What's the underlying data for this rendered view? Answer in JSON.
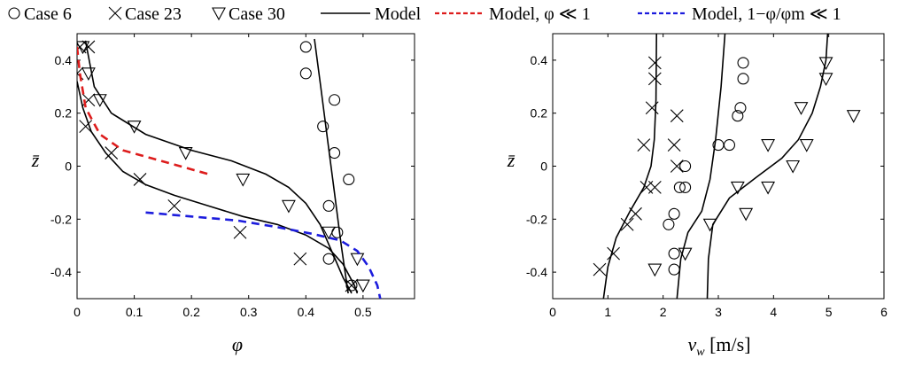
{
  "legend": [
    {
      "marker": "circle",
      "label": "Case 6"
    },
    {
      "marker": "cross",
      "label": "Case 23"
    },
    {
      "marker": "triangle",
      "label": "Case 30"
    },
    {
      "marker": "solid-line",
      "label": "Model",
      "color": "#000000"
    },
    {
      "marker": "dashed-line",
      "label": "Model, φ ≪ 1",
      "color": "#dd1c1c"
    },
    {
      "marker": "dashed-line",
      "label": "Model, 1−φ/φm ≪ 1",
      "color": "#1c1cdd"
    }
  ],
  "chart_data": [
    {
      "type": "scatter",
      "xlabel": "φ",
      "ylabel": "z̄",
      "xlim": [
        0,
        0.59
      ],
      "ylim": [
        -0.5,
        0.5
      ],
      "xticks": [
        "0",
        "0.1",
        "0.2",
        "0.3",
        "0.4",
        "0.5"
      ],
      "yticks": [
        "-0.4",
        "-0.2",
        "0",
        "0.2",
        "0.4"
      ],
      "grid": false,
      "series": [
        {
          "name": "Case 6",
          "marker": "circle",
          "points": [
            [
              0.4,
              0.45
            ],
            [
              0.4,
              0.35
            ],
            [
              0.45,
              0.25
            ],
            [
              0.43,
              0.15
            ],
            [
              0.45,
              0.05
            ],
            [
              0.475,
              -0.05
            ],
            [
              0.44,
              -0.15
            ],
            [
              0.455,
              -0.25
            ],
            [
              0.44,
              -0.35
            ],
            [
              0.48,
              -0.45
            ]
          ]
        },
        {
          "name": "Case 23",
          "marker": "cross",
          "points": [
            [
              0.005,
              0.45
            ],
            [
              0.02,
              0.45
            ],
            [
              0.0,
              0.35
            ],
            [
              0.02,
              0.25
            ],
            [
              0.015,
              0.15
            ],
            [
              0.06,
              0.05
            ],
            [
              0.11,
              -0.05
            ],
            [
              0.17,
              -0.15
            ],
            [
              0.285,
              -0.25
            ],
            [
              0.39,
              -0.35
            ],
            [
              0.48,
              -0.45
            ]
          ]
        },
        {
          "name": "Case 30",
          "marker": "triangle",
          "points": [
            [
              0.01,
              0.45
            ],
            [
              0.02,
              0.35
            ],
            [
              0.04,
              0.25
            ],
            [
              0.1,
              0.15
            ],
            [
              0.19,
              0.05
            ],
            [
              0.29,
              -0.05
            ],
            [
              0.37,
              -0.15
            ],
            [
              0.44,
              -0.25
            ],
            [
              0.49,
              -0.35
            ],
            [
              0.5,
              -0.45
            ]
          ]
        },
        {
          "name": "Model",
          "style": "solid",
          "color": "#000000",
          "points": [
            [
              0.015,
              0.47
            ],
            [
              0.03,
              0.3
            ],
            [
              0.06,
              0.2
            ],
            [
              0.12,
              0.12
            ],
            [
              0.2,
              0.06
            ],
            [
              0.27,
              0.02
            ],
            [
              0.33,
              -0.03
            ],
            [
              0.37,
              -0.08
            ],
            [
              0.4,
              -0.14
            ],
            [
              0.425,
              -0.22
            ],
            [
              0.445,
              -0.32
            ],
            [
              0.465,
              -0.42
            ],
            [
              0.48,
              -0.48
            ]
          ]
        },
        {
          "name": "Model",
          "style": "solid",
          "color": "#000000",
          "points": [
            [
              0.0,
              0.32
            ],
            [
              0.01,
              0.22
            ],
            [
              0.025,
              0.13
            ],
            [
              0.05,
              0.05
            ],
            [
              0.08,
              -0.02
            ],
            [
              0.12,
              -0.07
            ],
            [
              0.17,
              -0.11
            ],
            [
              0.23,
              -0.15
            ],
            [
              0.29,
              -0.19
            ],
            [
              0.35,
              -0.22
            ],
            [
              0.4,
              -0.26
            ],
            [
              0.44,
              -0.31
            ],
            [
              0.465,
              -0.37
            ],
            [
              0.485,
              -0.45
            ],
            [
              0.49,
              -0.48
            ]
          ]
        },
        {
          "name": "Model",
          "style": "solid",
          "color": "#000000",
          "points": [
            [
              0.415,
              0.48
            ],
            [
              0.426,
              0.3
            ],
            [
              0.438,
              0.1
            ],
            [
              0.45,
              -0.1
            ],
            [
              0.462,
              -0.3
            ],
            [
              0.474,
              -0.48
            ]
          ]
        },
        {
          "name": "Model, φ ≪ 1",
          "style": "dashed",
          "color": "#dd1c1c",
          "points": [
            [
              0.0,
              0.45
            ],
            [
              0.005,
              0.35
            ],
            [
              0.015,
              0.22
            ],
            [
              0.04,
              0.12
            ],
            [
              0.08,
              0.06
            ],
            [
              0.13,
              0.03
            ],
            [
              0.18,
              0.0
            ],
            [
              0.23,
              -0.03
            ]
          ]
        },
        {
          "name": "Model, 1−φ/φm ≪ 1",
          "style": "dashed",
          "color": "#1c1cdd",
          "points": [
            [
              0.12,
              -0.175
            ],
            [
              0.2,
              -0.19
            ],
            [
              0.28,
              -0.205
            ],
            [
              0.35,
              -0.23
            ],
            [
              0.41,
              -0.255
            ],
            [
              0.46,
              -0.28
            ],
            [
              0.49,
              -0.32
            ],
            [
              0.51,
              -0.38
            ],
            [
              0.525,
              -0.45
            ],
            [
              0.53,
              -0.5
            ]
          ]
        }
      ]
    },
    {
      "type": "scatter",
      "xlabel": "vw [m/s]",
      "ylabel": "z̄",
      "xlim": [
        0,
        6
      ],
      "ylim": [
        -0.5,
        0.5
      ],
      "xticks": [
        "0",
        "1",
        "2",
        "3",
        "4",
        "5",
        "6"
      ],
      "yticks": [
        "-0.4",
        "-0.2",
        "0",
        "0.2",
        "0.4"
      ],
      "grid": false,
      "series": [
        {
          "name": "Case 6",
          "marker": "circle",
          "points": [
            [
              3.45,
              0.39
            ],
            [
              3.45,
              0.33
            ],
            [
              3.4,
              0.22
            ],
            [
              3.35,
              0.19
            ],
            [
              3.0,
              0.08
            ],
            [
              3.2,
              0.08
            ],
            [
              2.4,
              0.0
            ],
            [
              2.3,
              -0.08
            ],
            [
              2.4,
              -0.08
            ],
            [
              2.2,
              -0.18
            ],
            [
              2.1,
              -0.22
            ],
            [
              2.2,
              -0.33
            ],
            [
              2.2,
              -0.39
            ]
          ]
        },
        {
          "name": "Case 23",
          "marker": "cross",
          "points": [
            [
              1.85,
              0.39
            ],
            [
              1.85,
              0.33
            ],
            [
              1.8,
              0.22
            ],
            [
              2.25,
              0.19
            ],
            [
              1.65,
              0.08
            ],
            [
              2.2,
              0.08
            ],
            [
              2.25,
              0.0
            ],
            [
              1.7,
              -0.08
            ],
            [
              1.85,
              -0.08
            ],
            [
              1.5,
              -0.18
            ],
            [
              1.35,
              -0.22
            ],
            [
              1.1,
              -0.33
            ],
            [
              0.85,
              -0.39
            ]
          ]
        },
        {
          "name": "Case 30",
          "marker": "triangle",
          "points": [
            [
              4.95,
              0.39
            ],
            [
              4.95,
              0.33
            ],
            [
              4.5,
              0.22
            ],
            [
              5.45,
              0.19
            ],
            [
              3.9,
              0.08
            ],
            [
              4.6,
              0.08
            ],
            [
              4.35,
              0.0
            ],
            [
              3.35,
              -0.08
            ],
            [
              3.9,
              -0.08
            ],
            [
              3.5,
              -0.18
            ],
            [
              2.85,
              -0.22
            ],
            [
              2.4,
              -0.33
            ],
            [
              1.85,
              -0.39
            ]
          ]
        },
        {
          "name": "Model",
          "style": "solid",
          "color": "#000000",
          "points": [
            [
              0.92,
              -0.5
            ],
            [
              1.0,
              -0.38
            ],
            [
              1.15,
              -0.27
            ],
            [
              1.4,
              -0.17
            ],
            [
              1.65,
              -0.08
            ],
            [
              1.78,
              0.0
            ],
            [
              1.84,
              0.1
            ],
            [
              1.87,
              0.25
            ],
            [
              1.88,
              0.5
            ]
          ]
        },
        {
          "name": "Model",
          "style": "solid",
          "color": "#000000",
          "points": [
            [
              2.25,
              -0.5
            ],
            [
              2.32,
              -0.35
            ],
            [
              2.45,
              -0.25
            ],
            [
              2.7,
              -0.17
            ],
            [
              2.85,
              -0.05
            ],
            [
              2.95,
              0.1
            ],
            [
              3.05,
              0.3
            ],
            [
              3.12,
              0.5
            ]
          ]
        },
        {
          "name": "Model",
          "style": "solid",
          "color": "#000000",
          "points": [
            [
              2.8,
              -0.5
            ],
            [
              2.82,
              -0.35
            ],
            [
              2.9,
              -0.22
            ],
            [
              3.2,
              -0.12
            ],
            [
              3.7,
              -0.04
            ],
            [
              4.15,
              0.03
            ],
            [
              4.45,
              0.1
            ],
            [
              4.7,
              0.2
            ],
            [
              4.85,
              0.3
            ],
            [
              4.95,
              0.4
            ],
            [
              4.98,
              0.5
            ]
          ]
        }
      ]
    }
  ]
}
